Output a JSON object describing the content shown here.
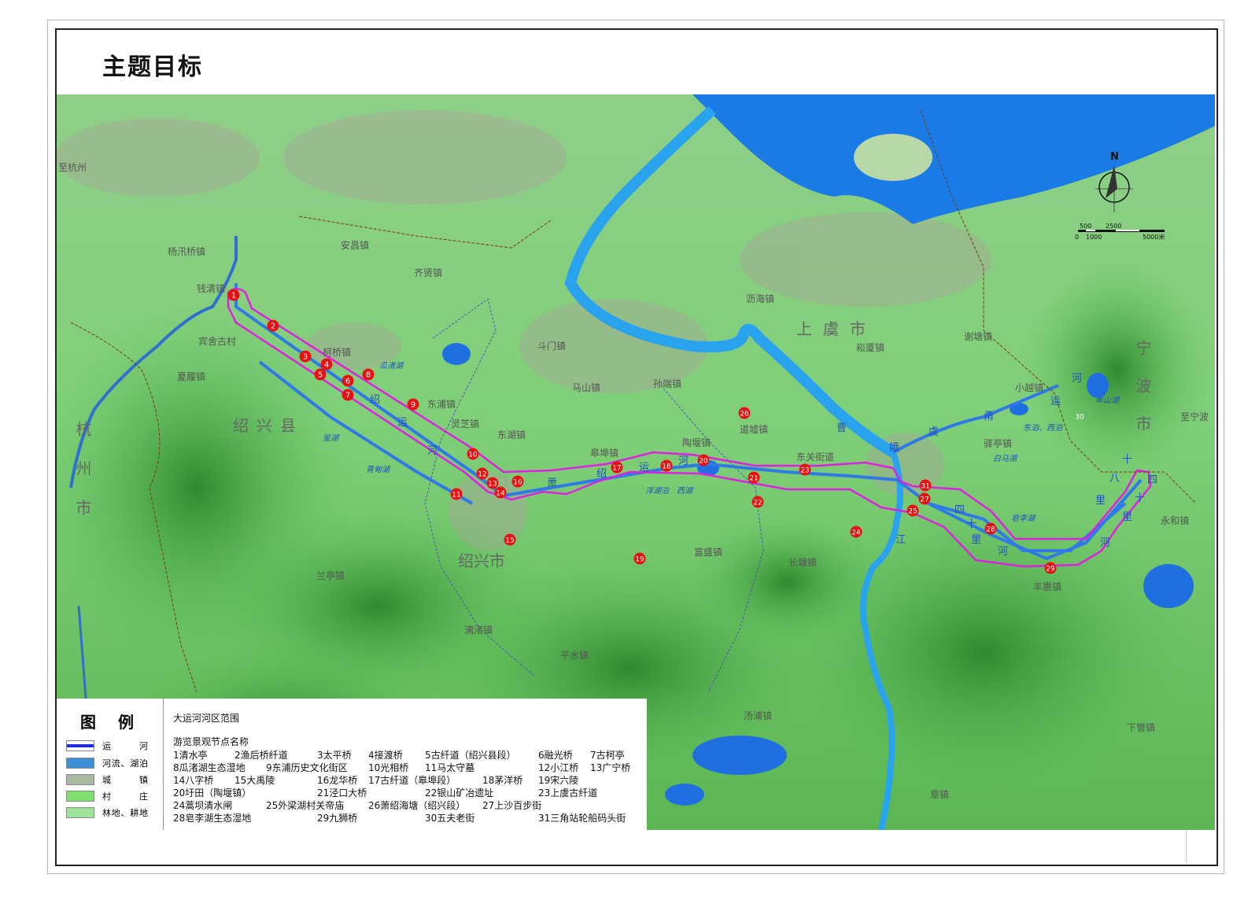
{
  "title": "主题目标",
  "map": {
    "place_labels": [
      {
        "text": "至杭州"
      },
      {
        "text": "杨汛桥镇"
      },
      {
        "text": "钱清镇"
      },
      {
        "text": "安昌镇"
      },
      {
        "text": "齐贤镇"
      },
      {
        "text": "宾舍古村"
      },
      {
        "text": "夏履镇"
      },
      {
        "text": "柯桥镇"
      },
      {
        "text": "东浦镇"
      },
      {
        "text": "灵芝镇"
      },
      {
        "text": "东湖镇"
      },
      {
        "text": "斗门镇"
      },
      {
        "text": "马山镇"
      },
      {
        "text": "孙端镇"
      },
      {
        "text": "皋埠镇"
      },
      {
        "text": "陶堰镇"
      },
      {
        "text": "道墟镇"
      },
      {
        "text": "沥海镇"
      },
      {
        "text": "崧厦镇"
      },
      {
        "text": "谢塘镇"
      },
      {
        "text": "小越镇"
      },
      {
        "text": "驿亭镇"
      },
      {
        "text": "东关街道"
      },
      {
        "text": "至宁波"
      },
      {
        "text": "永和镇"
      },
      {
        "text": "丰惠镇"
      },
      {
        "text": "长塘镇"
      },
      {
        "text": "富盛镇"
      },
      {
        "text": "兰亭镇"
      },
      {
        "text": "平水镇"
      },
      {
        "text": "汤浦镇"
      },
      {
        "text": "下管镇"
      },
      {
        "text": "章镇"
      },
      {
        "text": "漓渚镇"
      }
    ],
    "region_labels": [
      {
        "text": "杭州市"
      },
      {
        "text": "绍兴县"
      },
      {
        "text": "绍兴市"
      },
      {
        "text": "上虞市"
      },
      {
        "text": "宁波市"
      }
    ],
    "water_labels": [
      {
        "text": "瓜渚湖"
      },
      {
        "text": "鉴湖"
      },
      {
        "text": "青甸湖"
      },
      {
        "text": "洋湖泊"
      },
      {
        "text": "西湖"
      },
      {
        "text": "白马湖"
      },
      {
        "text": "东泊、西泊"
      },
      {
        "text": "皂李湖"
      },
      {
        "text": "牟山湖"
      }
    ],
    "canal_labels": [
      "绍",
      "运",
      "河",
      "萧",
      "绍",
      "运",
      "河",
      "曹",
      "娥",
      "江",
      "虞",
      "甬",
      "运",
      "河",
      "四",
      "十",
      "里",
      "河",
      "八",
      "十",
      "里",
      "四",
      "十",
      "里",
      "河"
    ],
    "nodes": [
      "1",
      "2",
      "3",
      "4",
      "5",
      "6",
      "7",
      "8",
      "9",
      "10",
      "11",
      "12",
      "13",
      "14",
      "15",
      "16",
      "17",
      "18",
      "19",
      "20",
      "21",
      "22",
      "23",
      "24",
      "25",
      "26",
      "27",
      "28",
      "29",
      "30",
      "31"
    ],
    "compass_label": "N",
    "scale_labels": {
      "top1": "500",
      "top2": "2500",
      "bot1": "0",
      "bot2": "1000",
      "bot3": "5000米"
    },
    "colors": {
      "canal": "#2b5fe0",
      "river": "#2f8fe6",
      "boundary": "#e020e0",
      "node": "#e81010",
      "sea": "#1a7ae6",
      "land": "#6fd46a",
      "mountain": "#3a9a3a"
    }
  },
  "legend": {
    "title": "图例",
    "items": [
      {
        "label": "运　河",
        "swatch": "canal"
      },
      {
        "label": "河流、湖泊",
        "swatch": "river"
      },
      {
        "label": "城　镇",
        "swatch": "town"
      },
      {
        "label": "村　庄",
        "swatch": "village"
      },
      {
        "label": "林地、耕地",
        "swatch": "forest"
      }
    ]
  },
  "info_panel": {
    "range_title": "大运河河区范围",
    "nodes_title": "游览景观节点名称",
    "nodes": [
      "1清水亭",
      "2渔后桥纤道",
      "3太平桥",
      "4接渡桥",
      "5古纤道（绍兴县段）",
      "6融光桥",
      "7古柯亭",
      "8瓜渚湖生态湿地",
      "9东浦历史文化街区",
      "10光相桥",
      "11马太守墓",
      "12小江桥",
      "13广宁桥",
      "14八字桥",
      "15大禹陵",
      "16龙华桥",
      "17古纤道（皋埠段）",
      "18茅洋桥",
      "19宋六陵",
      "20圩田（陶堰镇）",
      "21泾口大桥",
      "22银山矿冶遗址",
      "23上虞古纤道",
      "24蒿坝清水闸",
      "25外梁湖村关帝庙",
      "26萧绍海塘（绍兴段）",
      "27上沙百步街",
      "28皂李湖生态湿地",
      "29九狮桥",
      "30五夫老街",
      "31三角站轮船码头街"
    ]
  }
}
